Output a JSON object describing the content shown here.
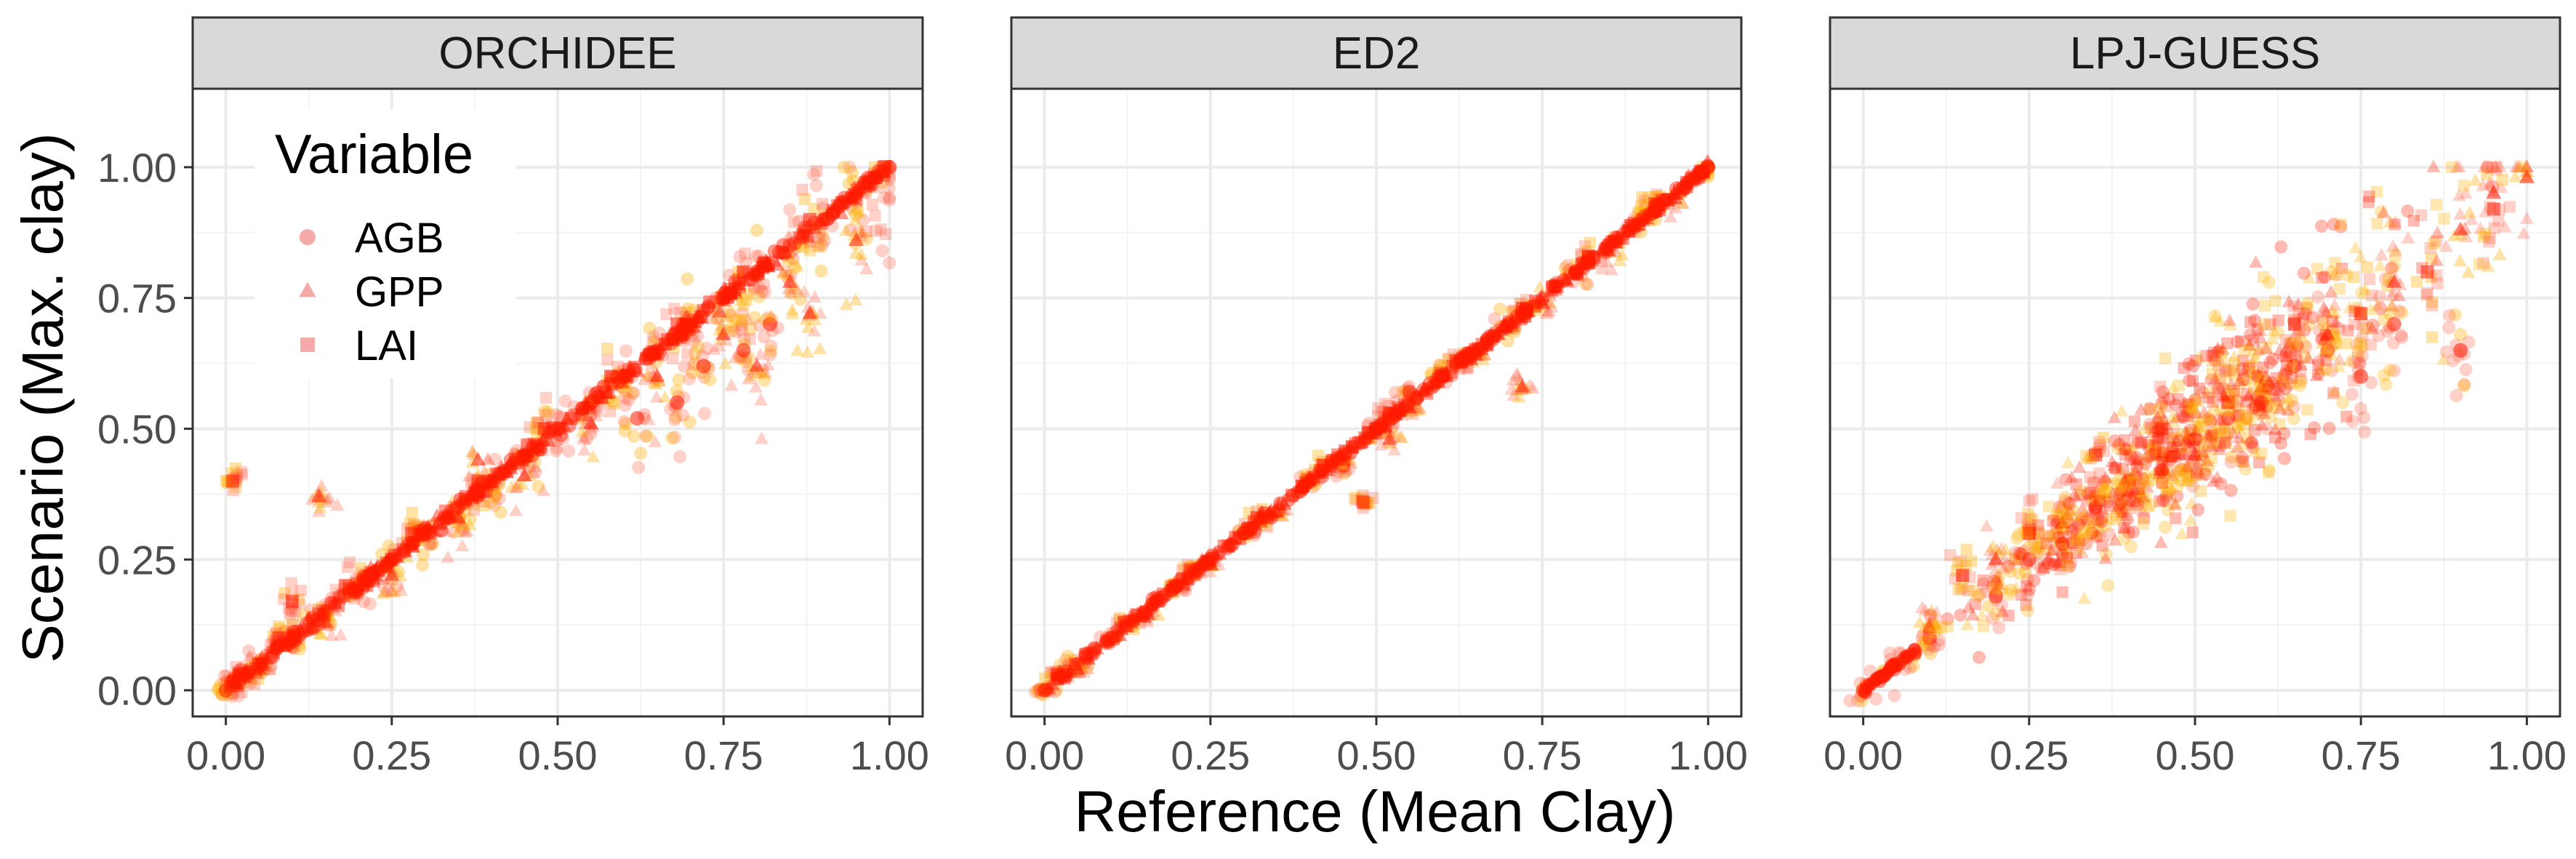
{
  "chart_data": {
    "type": "scatter",
    "xlabel": "Reference (Mean Clay)",
    "ylabel": "Scenario (Max. clay)",
    "xlim": [
      -0.05,
      1.05
    ],
    "ylim": [
      -0.05,
      1.15
    ],
    "x_ticks": [
      "0.00",
      "0.25",
      "0.50",
      "0.75",
      "1.00"
    ],
    "y_ticks": [
      "0.00",
      "0.25",
      "0.50",
      "0.75",
      "1.00"
    ],
    "grid": true,
    "facets": [
      "ORCHIDEE",
      "ED2",
      "LPJ-GUESS"
    ],
    "legend": {
      "title": "Variable",
      "position": "top-left",
      "entries": [
        {
          "label": "AGB",
          "shape": "circle"
        },
        {
          "label": "GPP",
          "shape": "triangle"
        },
        {
          "label": "LAI",
          "shape": "square"
        }
      ]
    },
    "colors": {
      "points_core": "#ff1a00",
      "points_mid": "#ff5a3c",
      "points_light": "#ffb000",
      "legend_symbol": "#f5a0a0",
      "strip_bg": "#d9d9d9",
      "panel_border": "#333333",
      "grid_major": "#ebebeb"
    },
    "panels": [
      {
        "name": "ORCHIDEE",
        "series": [
          {
            "name": "AGB",
            "x": [
              0.0,
              0.02,
              0.05,
              0.1,
              0.15,
              0.2,
              0.25,
              0.3,
              0.35,
              0.4,
              0.45,
              0.5,
              0.55,
              0.6,
              0.65,
              0.7,
              0.75,
              0.8,
              0.85,
              0.9,
              0.95,
              1.0,
              0.72,
              0.78,
              0.82,
              0.68,
              0.62
            ],
            "y": [
              0.0,
              0.02,
              0.05,
              0.1,
              0.15,
              0.2,
              0.25,
              0.3,
              0.35,
              0.4,
              0.45,
              0.5,
              0.55,
              0.6,
              0.65,
              0.7,
              0.75,
              0.8,
              0.85,
              0.9,
              0.95,
              1.0,
              0.62,
              0.65,
              0.7,
              0.55,
              0.52
            ]
          },
          {
            "name": "GPP",
            "x": [
              0.05,
              0.15,
              0.25,
              0.35,
              0.45,
              0.55,
              0.65,
              0.75,
              0.85,
              0.95,
              0.14,
              0.38,
              0.8,
              0.88
            ],
            "y": [
              0.04,
              0.13,
              0.22,
              0.33,
              0.41,
              0.51,
              0.6,
              0.68,
              0.78,
              0.86,
              0.37,
              0.44,
              0.62,
              0.72
            ]
          },
          {
            "name": "LAI",
            "x": [
              0.02,
              0.08,
              0.18,
              0.28,
              0.38,
              0.48,
              0.58,
              0.68,
              0.78,
              0.88,
              0.98,
              0.01,
              0.1
            ],
            "y": [
              0.03,
              0.1,
              0.2,
              0.3,
              0.4,
              0.5,
              0.6,
              0.7,
              0.8,
              0.9,
              0.98,
              0.4,
              0.17
            ]
          }
        ]
      },
      {
        "name": "ED2",
        "series": [
          {
            "name": "AGB",
            "x": [
              0.0,
              0.05,
              0.1,
              0.2,
              0.3,
              0.4,
              0.5,
              0.6,
              0.7,
              0.8,
              0.9,
              1.0,
              0.45,
              0.55
            ],
            "y": [
              0.0,
              0.05,
              0.1,
              0.2,
              0.3,
              0.4,
              0.5,
              0.6,
              0.7,
              0.8,
              0.9,
              1.0,
              0.43,
              0.57
            ]
          },
          {
            "name": "GPP",
            "x": [
              0.05,
              0.15,
              0.25,
              0.35,
              0.45,
              0.55,
              0.65,
              0.75,
              0.85,
              0.95,
              0.72,
              0.52
            ],
            "y": [
              0.04,
              0.14,
              0.24,
              0.34,
              0.44,
              0.54,
              0.64,
              0.74,
              0.84,
              0.94,
              0.58,
              0.48
            ]
          },
          {
            "name": "LAI",
            "x": [
              0.02,
              0.12,
              0.22,
              0.32,
              0.42,
              0.52,
              0.62,
              0.72,
              0.82,
              0.92,
              0.48
            ],
            "y": [
              0.03,
              0.13,
              0.23,
              0.33,
              0.43,
              0.53,
              0.63,
              0.73,
              0.83,
              0.93,
              0.36
            ]
          }
        ]
      },
      {
        "name": "LPJ-GUESS",
        "series": [
          {
            "name": "AGB",
            "x": [
              0.0,
              0.05,
              0.1,
              0.2,
              0.25,
              0.3,
              0.35,
              0.4,
              0.45,
              0.5,
              0.55,
              0.6,
              0.65,
              0.7,
              0.75,
              0.8,
              0.9
            ],
            "y": [
              0.0,
              0.05,
              0.1,
              0.18,
              0.25,
              0.28,
              0.35,
              0.4,
              0.42,
              0.48,
              0.52,
              0.55,
              0.62,
              0.65,
              0.6,
              0.7,
              0.65
            ]
          },
          {
            "name": "GPP",
            "x": [
              0.1,
              0.2,
              0.3,
              0.4,
              0.5,
              0.6,
              0.7,
              0.8,
              0.9,
              0.95,
              1.0
            ],
            "y": [
              0.12,
              0.25,
              0.32,
              0.38,
              0.45,
              0.58,
              0.68,
              0.78,
              0.88,
              0.95,
              0.98
            ]
          },
          {
            "name": "LAI",
            "x": [
              0.15,
              0.25,
              0.35,
              0.45,
              0.55,
              0.65,
              0.75,
              0.85,
              0.95
            ],
            "y": [
              0.22,
              0.3,
              0.45,
              0.5,
              0.55,
              0.7,
              0.72,
              0.8,
              0.92
            ]
          }
        ]
      }
    ]
  }
}
